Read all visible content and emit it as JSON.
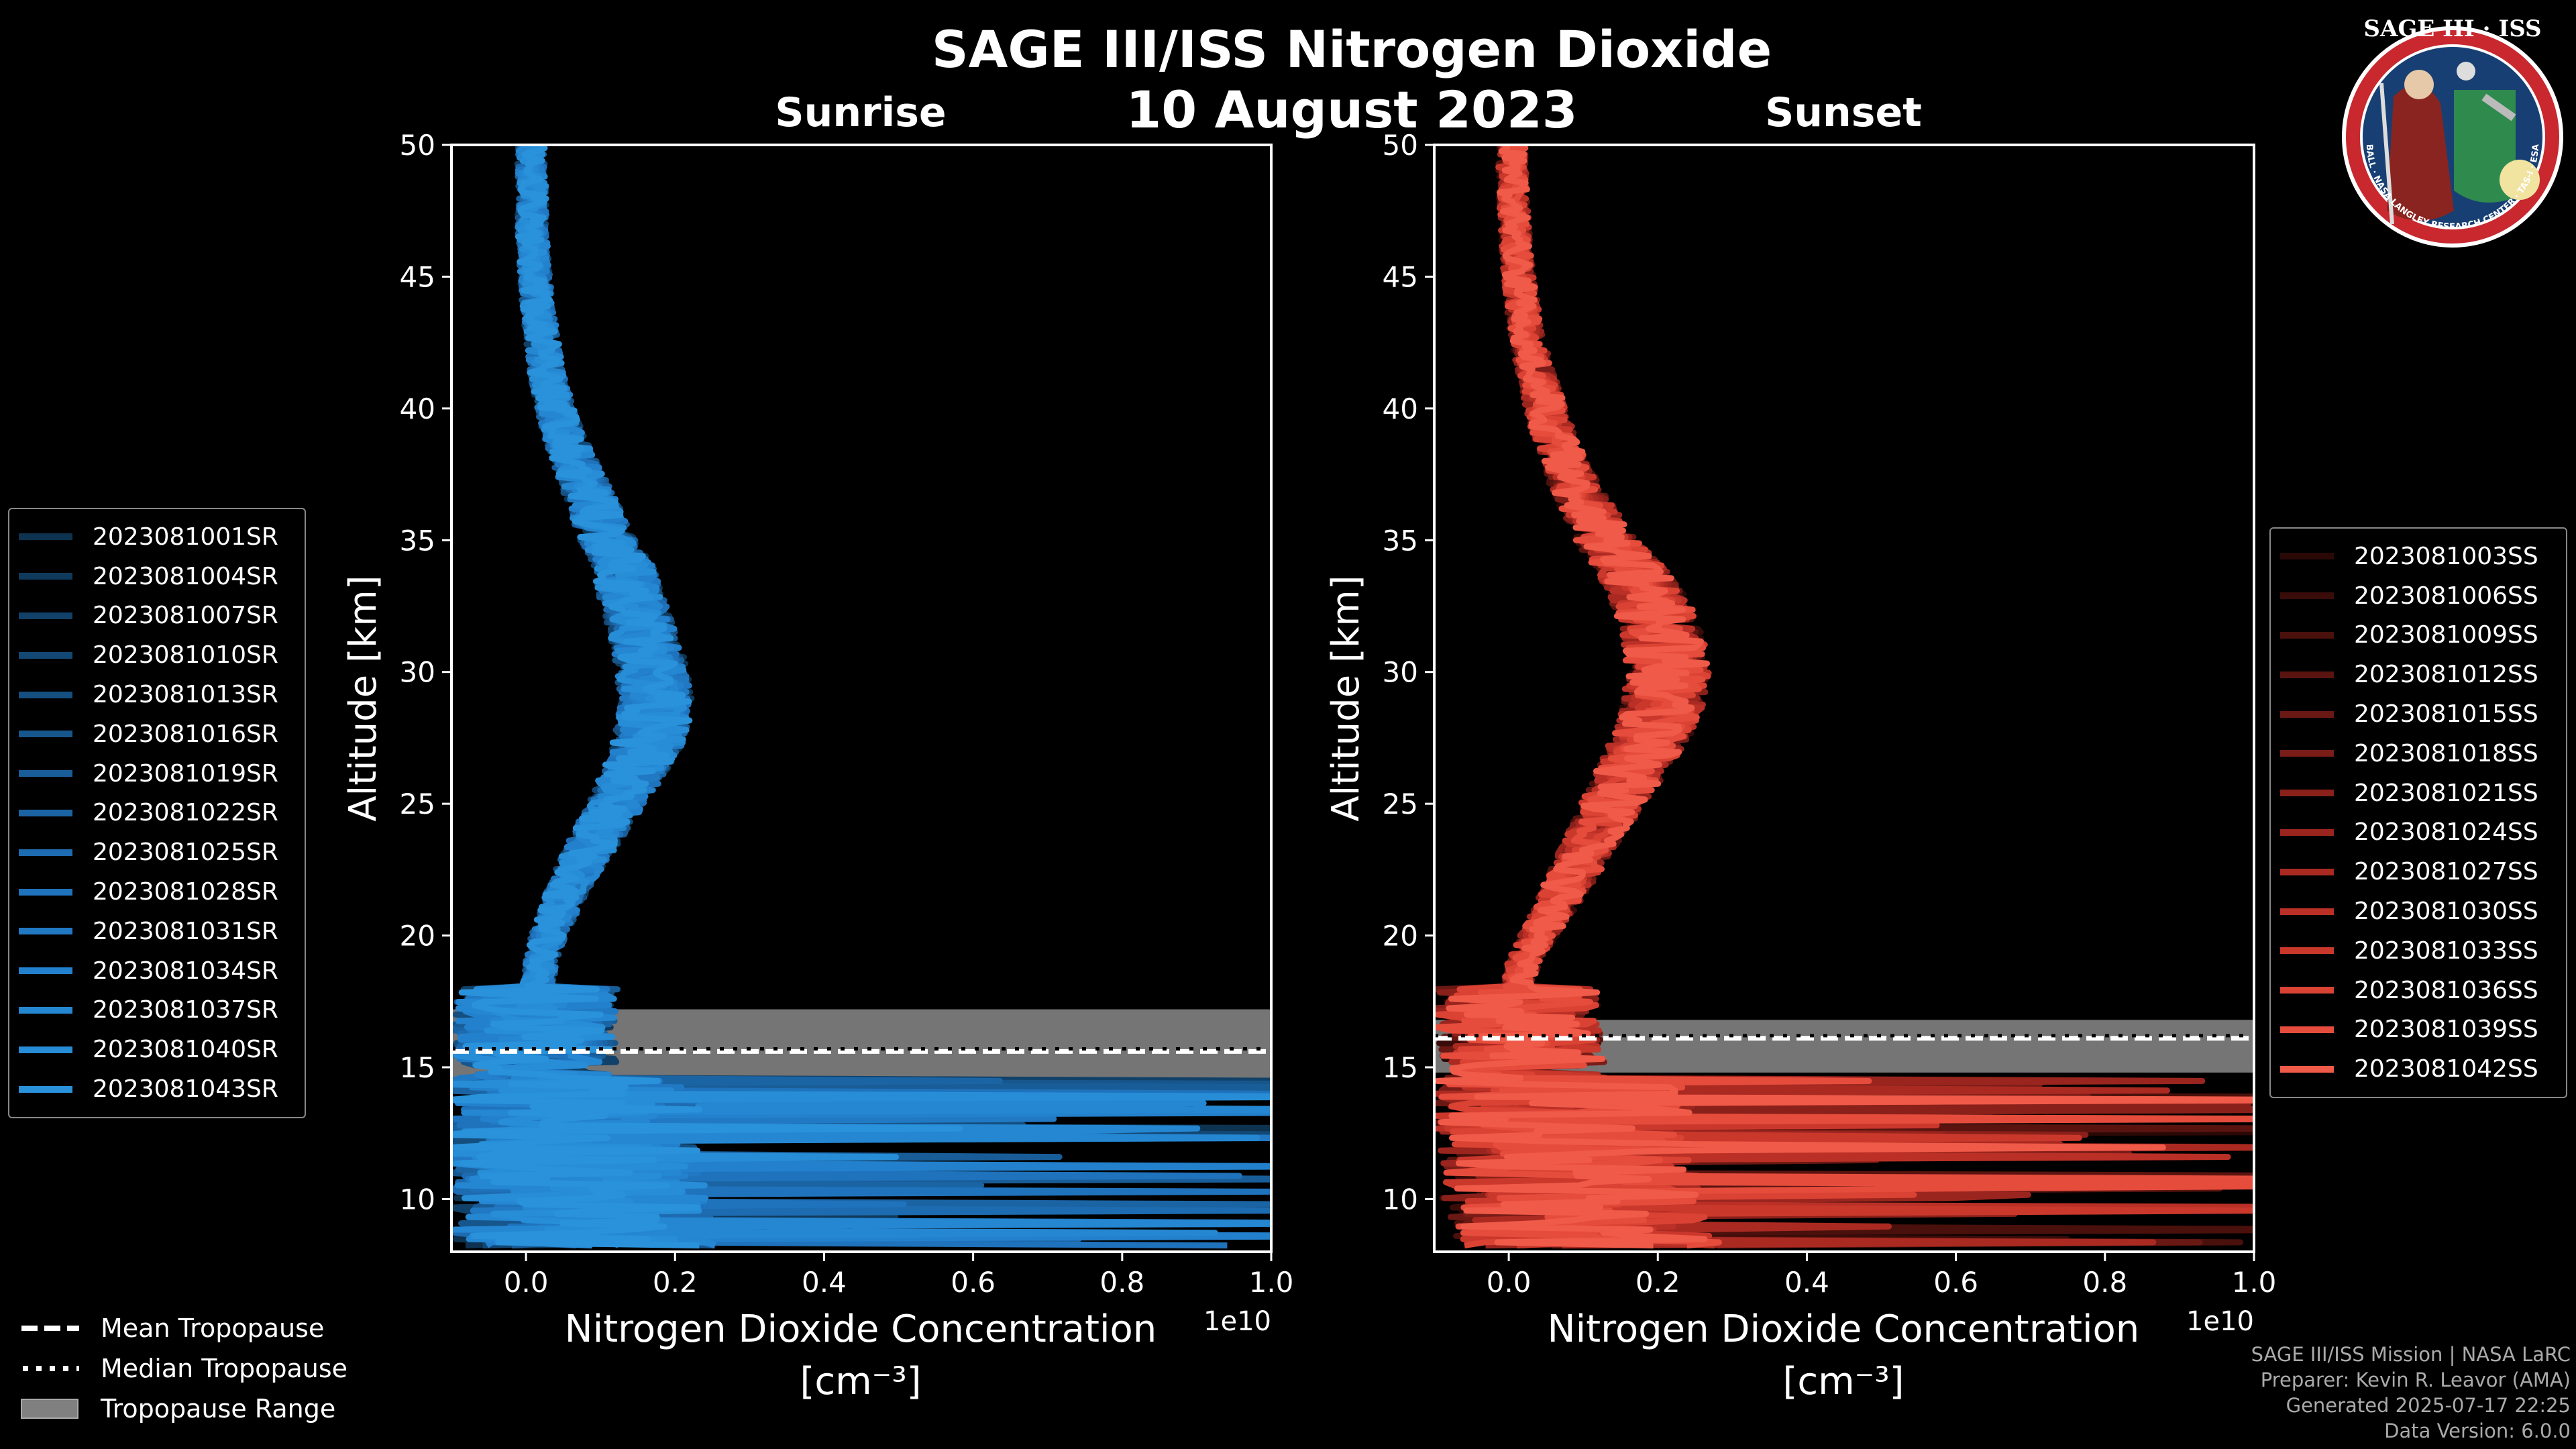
{
  "figure": {
    "title": "SAGE III/ISS Nitrogen Dioxide",
    "date": "10 August 2023",
    "footer": [
      "SAGE III/ISS Mission | NASA LaRC",
      "Preparer: Kevin R. Leavor (AMA)",
      "Generated 2025-07-17 22:25",
      "Data Version: 6.0.0"
    ],
    "logo": {
      "title": "SAGE III · ISS",
      "ring_text": "BALL · NASA LANGLEY RESEARCH CENTER · TAS-I · ESA"
    }
  },
  "legend_tropopause": [
    {
      "label": "Mean Tropopause",
      "style": "dashed"
    },
    {
      "label": "Median Tropopause",
      "style": "dotted"
    },
    {
      "label": "Tropopause Range",
      "style": "band"
    }
  ],
  "chart_data": [
    {
      "type": "line",
      "panel": "sunrise",
      "title": "Sunrise",
      "xlabel": "Nitrogen Dioxide Concentration",
      "xlabel_unit": "[cm⁻³]",
      "x_offset_label": "1e10",
      "ylabel": "Altitude [km]",
      "xlim": [
        -0.1,
        1.0
      ],
      "ylim": [
        8,
        50
      ],
      "xticks": [
        "0.0",
        "0.2",
        "0.4",
        "0.6",
        "0.8",
        "1.0"
      ],
      "xtick_values": [
        0.0,
        0.2,
        0.4,
        0.6,
        0.8,
        1.0
      ],
      "yticks": [
        10,
        15,
        20,
        25,
        30,
        35,
        40,
        45,
        50
      ],
      "color_base": "#1c8fd6",
      "series_names": [
        "2023081001SR",
        "2023081004SR",
        "2023081007SR",
        "2023081010SR",
        "2023081013SR",
        "2023081016SR",
        "2023081019SR",
        "2023081022SR",
        "2023081025SR",
        "2023081028SR",
        "2023081031SR",
        "2023081034SR",
        "2023081037SR",
        "2023081040SR",
        "2023081043SR"
      ],
      "series_colors": [
        "#0d3350",
        "#0f3a5c",
        "#114168",
        "#134874",
        "#154f80",
        "#17568c",
        "#195d98",
        "#1b64a4",
        "#1d6bb0",
        "#1f72bc",
        "#2179c4",
        "#2380cc",
        "#2587d2",
        "#278dd6",
        "#2992da"
      ],
      "mean_profile": {
        "altitude": [
          8,
          9,
          10,
          11,
          12,
          13,
          14,
          15,
          16,
          17,
          18,
          19,
          20,
          21,
          22,
          23,
          24,
          25,
          26,
          27,
          28,
          29,
          30,
          31,
          32,
          33,
          34,
          35,
          36,
          37,
          38,
          39,
          40,
          41,
          42,
          43,
          44,
          45,
          46,
          47,
          48,
          49,
          50
        ],
        "value": [
          0.05,
          0.04,
          0.035,
          0.03,
          0.03,
          0.025,
          0.02,
          0.015,
          0.01,
          0.01,
          0.015,
          0.02,
          0.03,
          0.045,
          0.06,
          0.08,
          0.1,
          0.12,
          0.14,
          0.16,
          0.17,
          0.175,
          0.17,
          0.16,
          0.15,
          0.14,
          0.13,
          0.11,
          0.095,
          0.08,
          0.065,
          0.05,
          0.04,
          0.03,
          0.025,
          0.02,
          0.015,
          0.012,
          0.01,
          0.008,
          0.008,
          0.007,
          0.007
        ]
      },
      "tropopause": {
        "mean": 15.6,
        "median": 15.7,
        "range": [
          14.6,
          17.2
        ]
      }
    },
    {
      "type": "line",
      "panel": "sunset",
      "title": "Sunset",
      "xlabel": "Nitrogen Dioxide Concentration",
      "xlabel_unit": "[cm⁻³]",
      "x_offset_label": "1e10",
      "ylabel": "Altitude [km]",
      "xlim": [
        -0.1,
        1.0
      ],
      "ylim": [
        8,
        50
      ],
      "xticks": [
        "0.0",
        "0.2",
        "0.4",
        "0.6",
        "0.8",
        "1.0"
      ],
      "xtick_values": [
        0.0,
        0.2,
        0.4,
        0.6,
        0.8,
        1.0
      ],
      "yticks": [
        10,
        15,
        20,
        25,
        30,
        35,
        40,
        45,
        50
      ],
      "color_base": "#f05a48",
      "series_names": [
        "2023081003SS",
        "2023081006SS",
        "2023081009SS",
        "2023081012SS",
        "2023081015SS",
        "2023081018SS",
        "2023081021SS",
        "2023081024SS",
        "2023081027SS",
        "2023081030SS",
        "2023081033SS",
        "2023081036SS",
        "2023081039SS",
        "2023081042SS"
      ],
      "series_colors": [
        "#2a0806",
        "#3a0c09",
        "#4a100c",
        "#5a1410",
        "#6a1813",
        "#7a1c17",
        "#8a201a",
        "#9a251e",
        "#aa2a22",
        "#ba3026",
        "#ca382c",
        "#da4233",
        "#e64c3c",
        "#f05a48"
      ],
      "mean_profile": {
        "altitude": [
          8,
          9,
          10,
          11,
          12,
          13,
          14,
          15,
          16,
          17,
          18,
          19,
          20,
          21,
          22,
          23,
          24,
          25,
          26,
          27,
          28,
          29,
          30,
          31,
          32,
          33,
          34,
          35,
          36,
          37,
          38,
          39,
          40,
          41,
          42,
          43,
          44,
          45,
          46,
          47,
          48,
          49,
          50
        ],
        "value": [
          0.08,
          0.06,
          0.05,
          0.05,
          0.045,
          0.04,
          0.035,
          0.02,
          0.015,
          0.01,
          0.01,
          0.02,
          0.04,
          0.06,
          0.08,
          0.1,
          0.12,
          0.14,
          0.16,
          0.18,
          0.2,
          0.21,
          0.215,
          0.21,
          0.2,
          0.185,
          0.16,
          0.13,
          0.11,
          0.09,
          0.075,
          0.06,
          0.05,
          0.04,
          0.03,
          0.022,
          0.018,
          0.014,
          0.01,
          0.008,
          0.006,
          0.005,
          0.005
        ]
      },
      "tropopause": {
        "mean": 16.1,
        "median": 16.2,
        "range": [
          14.8,
          16.8
        ]
      }
    }
  ]
}
